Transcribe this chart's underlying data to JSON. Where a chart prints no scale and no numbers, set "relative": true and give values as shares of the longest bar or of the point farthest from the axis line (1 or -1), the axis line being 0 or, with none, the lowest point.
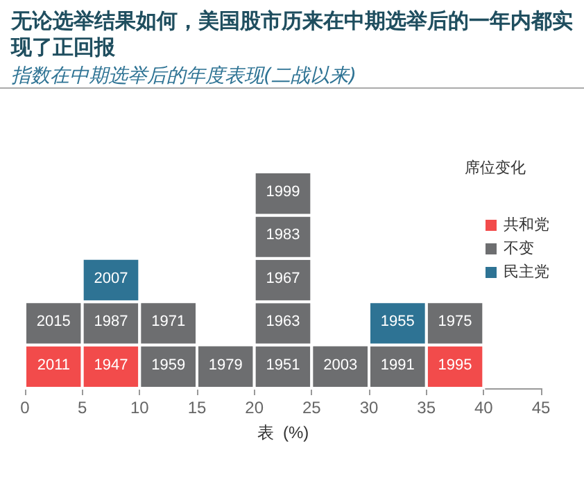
{
  "chart_data": {
    "type": "bar",
    "title": "无论选举结果如何，美国股市历来在中期选举后的一年内都实现了正回报",
    "subtitle": "指数在中期选举后的年度表现(二战以来)",
    "xlabel": "表  (%)",
    "legend_title": "席位变化",
    "x": [
      2.5,
      7.5,
      12.5,
      17.5,
      22.5,
      27.5,
      32.5,
      37.5
    ],
    "xlim": [
      0,
      45
    ],
    "xticks": [
      0,
      5,
      10,
      15,
      20,
      25,
      30,
      35,
      40,
      45
    ],
    "relative": true,
    "stacked": true,
    "legend": "top right",
    "grid": false,
    "series": [
      {
        "name": "共和党",
        "color": "#f24b4b",
        "values": [
          0.2,
          0.2,
          null,
          null,
          null,
          null,
          null,
          0.2
        ]
      },
      {
        "name": "不变",
        "color": "#6d6e70",
        "values": [
          0.2,
          0.2,
          0.2,
          0.2,
          0.2,
          0.2,
          0.2,
          0.2
        ]
      },
      {
        "color": "#6d6e70",
        "values": [
          null,
          null,
          0.2,
          null,
          0.2,
          null,
          null,
          null
        ]
      },
      {
        "color": "#6d6e70",
        "values": [
          null,
          null,
          null,
          null,
          0.2,
          null,
          null,
          null
        ]
      },
      {
        "color": "#6d6e70",
        "values": [
          null,
          null,
          null,
          null,
          0.2,
          null,
          null,
          null
        ]
      },
      {
        "color": "#6d6e70",
        "values": [
          null,
          null,
          null,
          null,
          0.2,
          null,
          null,
          null
        ]
      },
      {
        "name": "民主党",
        "color": "#2e7394",
        "values": [
          null,
          0.2,
          null,
          null,
          null,
          null,
          0.2,
          null
        ]
      }
    ],
    "annotations": [
      {
        "text": "2011",
        "x": 2.5,
        "y": 0.2
      },
      {
        "text": "2015",
        "x": 2.5,
        "y": 0.4
      },
      {
        "text": "1947",
        "x": 7.5,
        "y": 0.2
      },
      {
        "text": "1987",
        "x": 7.5,
        "y": 0.4
      },
      {
        "text": "2007",
        "x": 7.5,
        "y": 0.6
      },
      {
        "text": "1959",
        "x": 12.5,
        "y": 0.2
      },
      {
        "text": "1971",
        "x": 12.5,
        "y": 0.4
      },
      {
        "text": "1979",
        "x": 17.5,
        "y": 0.2
      },
      {
        "text": "1951",
        "x": 22.5,
        "y": 0.2
      },
      {
        "text": "1963",
        "x": 22.5,
        "y": 0.4
      },
      {
        "text": "1967",
        "x": 22.5,
        "y": 0.6
      },
      {
        "text": "1983",
        "x": 22.5,
        "y": 0.8
      },
      {
        "text": "1999",
        "x": 22.5,
        "y": 1
      },
      {
        "text": "2003",
        "x": 27.5,
        "y": 0.2
      },
      {
        "text": "1991",
        "x": 32.5,
        "y": 0.2
      },
      {
        "text": "1955",
        "x": 32.5,
        "y": 0.4
      },
      {
        "text": "1995",
        "x": 37.5,
        "y": 0.2
      },
      {
        "text": "1975",
        "x": 37.5,
        "y": 0.4
      }
    ]
  }
}
